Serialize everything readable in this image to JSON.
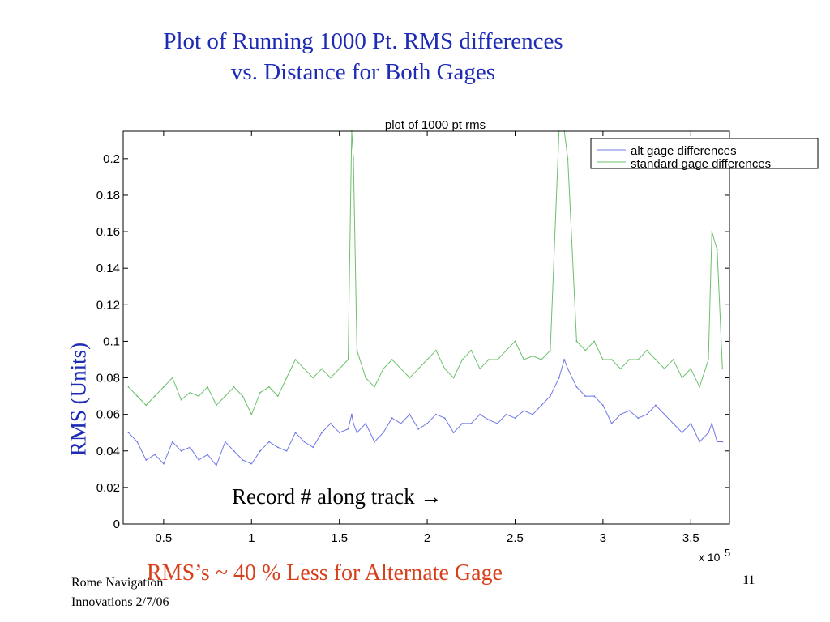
{
  "slide": {
    "title_line1": "Plot of Running 1000 Pt.  RMS differences",
    "title_line2": "vs. Distance for Both Gages",
    "y_axis_caption": "RMS (Units)",
    "x_axis_caption": "Record # along track",
    "arrow_glyph": "→",
    "conclusion": "RMS’s ~ 40 % Less for Alternate Gage",
    "footer_line1": "Rome Navigation",
    "footer_line2": "Innovations 2/7/06",
    "slide_number": "11"
  },
  "chart_data": {
    "type": "line",
    "title": "plot of 1000 pt rms",
    "xlabel": "",
    "ylabel": "",
    "x_multiplier_label": "x 10",
    "x_multiplier_exponent": "5",
    "xlim": [
      0.27,
      3.72
    ],
    "ylim": [
      0,
      0.215
    ],
    "x_ticks": [
      0.5,
      1,
      1.5,
      2,
      2.5,
      3,
      3.5
    ],
    "x_tick_labels": [
      "0.5",
      "1",
      "1.5",
      "2",
      "2.5",
      "3",
      "3.5"
    ],
    "y_ticks": [
      0,
      0.02,
      0.04,
      0.06,
      0.08,
      0.1,
      0.12,
      0.14,
      0.16,
      0.18,
      0.2
    ],
    "y_tick_labels": [
      "0",
      "0.02",
      "0.04",
      "0.06",
      "0.08",
      "0.1",
      "0.12",
      "0.14",
      "0.16",
      "0.18",
      "0.2"
    ],
    "grid": false,
    "legend_position": "top-right",
    "x": [
      0.3,
      0.35,
      0.4,
      0.45,
      0.5,
      0.55,
      0.6,
      0.65,
      0.7,
      0.75,
      0.8,
      0.85,
      0.9,
      0.95,
      1.0,
      1.05,
      1.1,
      1.15,
      1.2,
      1.25,
      1.3,
      1.35,
      1.4,
      1.45,
      1.5,
      1.55,
      1.57,
      1.58,
      1.6,
      1.65,
      1.7,
      1.75,
      1.8,
      1.85,
      1.9,
      1.95,
      2.0,
      2.05,
      2.1,
      2.15,
      2.2,
      2.25,
      2.3,
      2.35,
      2.4,
      2.45,
      2.5,
      2.55,
      2.6,
      2.65,
      2.7,
      2.75,
      2.78,
      2.8,
      2.85,
      2.9,
      2.95,
      3.0,
      3.05,
      3.1,
      3.15,
      3.2,
      3.25,
      3.3,
      3.35,
      3.4,
      3.45,
      3.5,
      3.55,
      3.6,
      3.62,
      3.65,
      3.68
    ],
    "series": [
      {
        "name": "alt gage  differences",
        "color": "#6f78e6",
        "values": [
          0.05,
          0.045,
          0.035,
          0.038,
          0.033,
          0.045,
          0.04,
          0.042,
          0.035,
          0.038,
          0.032,
          0.045,
          0.04,
          0.035,
          0.033,
          0.04,
          0.045,
          0.042,
          0.04,
          0.05,
          0.045,
          0.042,
          0.05,
          0.055,
          0.05,
          0.052,
          0.06,
          0.055,
          0.05,
          0.055,
          0.045,
          0.05,
          0.058,
          0.055,
          0.06,
          0.052,
          0.055,
          0.06,
          0.058,
          0.05,
          0.055,
          0.055,
          0.06,
          0.057,
          0.055,
          0.06,
          0.058,
          0.062,
          0.06,
          0.065,
          0.07,
          0.08,
          0.09,
          0.085,
          0.075,
          0.07,
          0.07,
          0.065,
          0.055,
          0.06,
          0.062,
          0.058,
          0.06,
          0.065,
          0.06,
          0.055,
          0.05,
          0.055,
          0.045,
          0.05,
          0.055,
          0.045,
          0.045
        ]
      },
      {
        "name": "standard gage differences",
        "color": "#6cc06c",
        "values": [
          0.075,
          0.07,
          0.065,
          0.07,
          0.075,
          0.08,
          0.068,
          0.072,
          0.07,
          0.075,
          0.065,
          0.07,
          0.075,
          0.07,
          0.06,
          0.072,
          0.075,
          0.07,
          0.08,
          0.09,
          0.085,
          0.08,
          0.085,
          0.08,
          0.085,
          0.09,
          0.215,
          0.2,
          0.095,
          0.08,
          0.075,
          0.085,
          0.09,
          0.085,
          0.08,
          0.085,
          0.09,
          0.095,
          0.085,
          0.08,
          0.09,
          0.095,
          0.085,
          0.09,
          0.09,
          0.095,
          0.1,
          0.09,
          0.092,
          0.09,
          0.095,
          0.215,
          0.215,
          0.2,
          0.1,
          0.095,
          0.1,
          0.09,
          0.09,
          0.085,
          0.09,
          0.09,
          0.095,
          0.09,
          0.085,
          0.09,
          0.08,
          0.085,
          0.075,
          0.09,
          0.16,
          0.15,
          0.085
        ]
      }
    ]
  }
}
